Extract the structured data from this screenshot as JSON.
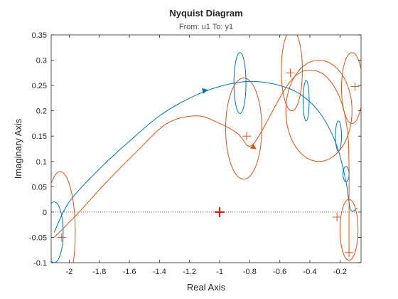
{
  "chart_data": {
    "type": "line",
    "title": "Nyquist Diagram",
    "subtitle": "From: u1  To: y1",
    "xlabel": "Real Axis",
    "ylabel": "Imaginary Axis",
    "xlim": [
      -2.12,
      -0.06
    ],
    "ylim": [
      -0.1,
      0.35
    ],
    "xticks": [
      "-2",
      "-1.8",
      "-1.6",
      "-1.4",
      "-1.2",
      "-1",
      "-0.8",
      "-0.6",
      "-0.4",
      "-0.2"
    ],
    "xtick_values": [
      -2,
      -1.8,
      -1.6,
      -1.4,
      -1.2,
      -1,
      -0.8,
      -0.6,
      -0.4,
      -0.2
    ],
    "yticks": [
      "-0.1",
      "-0.05",
      "0",
      "0.05",
      "0.1",
      "0.15",
      "0.2",
      "0.25",
      "0.3",
      "0.35"
    ],
    "ytick_values": [
      -0.1,
      -0.05,
      0,
      0.05,
      0.1,
      0.15,
      0.2,
      0.25,
      0.3,
      0.35
    ],
    "grid": false,
    "critical_point": [
      -1,
      0
    ],
    "colors": {
      "series_blue": "#0072BD",
      "series_orange": "#D95319",
      "critical": "#FF0000",
      "axes": "#262626"
    },
    "series": [
      {
        "color": "#0072BD",
        "points": [
          [
            -2.1,
            -0.04
          ],
          [
            -2.0,
            0.02
          ],
          [
            -1.8,
            0.085
          ],
          [
            -1.6,
            0.14
          ],
          [
            -1.4,
            0.19
          ],
          [
            -1.2,
            0.225
          ],
          [
            -1.0,
            0.248
          ],
          [
            -0.8,
            0.258
          ],
          [
            -0.6,
            0.25
          ],
          [
            -0.45,
            0.23
          ],
          [
            -0.32,
            0.19
          ],
          [
            -0.22,
            0.13
          ],
          [
            -0.16,
            0.06
          ],
          [
            -0.13,
            0.005
          ],
          [
            -0.085,
            0.008
          ]
        ],
        "arrows": [
          [
            -1.1,
            0.24
          ]
        ],
        "loops": [
          {
            "center": [
              -0.865,
              0.255
            ],
            "rx": 0.04,
            "ry": 0.06
          },
          {
            "center": [
              -0.425,
              0.22
            ],
            "rx": 0.02,
            "ry": 0.04
          },
          {
            "center": [
              -0.21,
              0.15
            ],
            "rx": 0.02,
            "ry": 0.03
          },
          {
            "center": [
              -0.16,
              0.075
            ],
            "rx": 0.02,
            "ry": 0.015
          },
          {
            "center": [
              -2.1,
              -0.04
            ],
            "rx": 0.06,
            "ry": 0.06
          }
        ],
        "markers": []
      },
      {
        "color": "#D95319",
        "points": [
          [
            -2.1,
            -0.05
          ],
          [
            -1.95,
            -0.005
          ],
          [
            -1.75,
            0.06
          ],
          [
            -1.55,
            0.12
          ],
          [
            -1.35,
            0.175
          ],
          [
            -1.15,
            0.19
          ],
          [
            -1.0,
            0.175
          ],
          [
            -0.88,
            0.155
          ],
          [
            -0.8,
            0.13
          ],
          [
            -0.72,
            0.16
          ],
          [
            -0.62,
            0.215
          ],
          [
            -0.52,
            0.262
          ],
          [
            -0.42,
            0.28
          ],
          [
            -0.3,
            0.27
          ],
          [
            -0.2,
            0.225
          ],
          [
            -0.15,
            0.16
          ],
          [
            -0.14,
            0.09
          ],
          [
            -0.14,
            0.02
          ],
          [
            -0.14,
            -0.04
          ],
          [
            -0.14,
            -0.08
          ]
        ],
        "arrows": [
          [
            -0.775,
            0.128
          ]
        ],
        "loops": [
          {
            "center": [
              -0.84,
              0.165
            ],
            "rx": 0.12,
            "ry": 0.1
          },
          {
            "center": [
              -0.52,
              0.28
            ],
            "rx": 0.07,
            "ry": 0.08
          },
          {
            "center": [
              -0.34,
              0.2
            ],
            "rx": 0.22,
            "ry": 0.1
          },
          {
            "center": [
              -0.12,
              0.245
            ],
            "rx": 0.07,
            "ry": 0.07
          },
          {
            "center": [
              -0.14,
              -0.035
            ],
            "rx": 0.06,
            "ry": 0.06
          },
          {
            "center": [
              -2.06,
              -0.04
            ],
            "rx": 0.1,
            "ry": 0.12
          }
        ],
        "markers": [
          [
            -0.82,
            0.15
          ],
          [
            -0.53,
            0.275
          ],
          [
            -0.1,
            0.248
          ],
          [
            -0.14,
            -0.08
          ],
          [
            -2.05,
            -0.05
          ],
          [
            -0.22,
            -0.01
          ]
        ]
      }
    ]
  }
}
